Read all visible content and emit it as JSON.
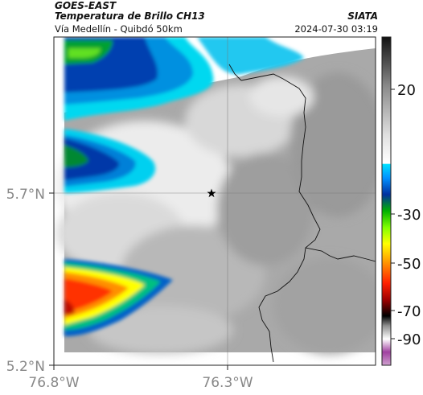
{
  "header": {
    "satellite": "GOES-EAST",
    "product": "Temperatura de Brillo CH13",
    "region": "Vía Medellín - Quibdó 50km",
    "agency": "SIATA",
    "datetime": "2024-07-30 03:19"
  },
  "axes": {
    "lat_ticks": [
      "5.7°N",
      "5.2°N"
    ],
    "lon_ticks": [
      "76.8°W",
      "76.3°W"
    ]
  },
  "colorbar": {
    "tick_labels": [
      "20",
      "-30",
      "-50",
      "-70",
      "-90"
    ]
  },
  "marker": {
    "type": "star"
  }
}
